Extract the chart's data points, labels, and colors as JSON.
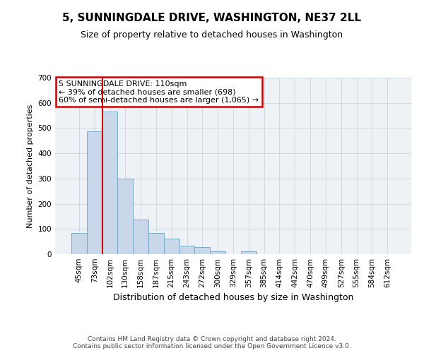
{
  "title": "5, SUNNINGDALE DRIVE, WASHINGTON, NE37 2LL",
  "subtitle": "Size of property relative to detached houses in Washington",
  "xlabel": "Distribution of detached houses by size in Washington",
  "ylabel": "Number of detached properties",
  "bin_labels": [
    "45sqm",
    "73sqm",
    "102sqm",
    "130sqm",
    "158sqm",
    "187sqm",
    "215sqm",
    "243sqm",
    "272sqm",
    "300sqm",
    "329sqm",
    "357sqm",
    "385sqm",
    "414sqm",
    "442sqm",
    "470sqm",
    "499sqm",
    "527sqm",
    "555sqm",
    "584sqm",
    "612sqm"
  ],
  "bar_heights": [
    83,
    488,
    565,
    301,
    138,
    84,
    62,
    35,
    29,
    12,
    0,
    11,
    0,
    0,
    0,
    0,
    0,
    0,
    0,
    0,
    0
  ],
  "bar_color": "#c8d8ea",
  "bar_edge_color": "#7aaac8",
  "bar_edge_width": 0.7,
  "vline_x_index": 2,
  "vline_color": "#cc0000",
  "ylim": [
    0,
    700
  ],
  "yticks": [
    0,
    100,
    200,
    300,
    400,
    500,
    600,
    700
  ],
  "grid_color": "#d0d8e0",
  "annotation_title": "5 SUNNINGDALE DRIVE: 110sqm",
  "annotation_line1": "← 39% of detached houses are smaller (698)",
  "annotation_line2": "60% of semi-detached houses are larger (1,065) →",
  "annotation_box_color": "#ffffff",
  "annotation_box_edge": "#cc0000",
  "footer_line1": "Contains HM Land Registry data © Crown copyright and database right 2024.",
  "footer_line2": "Contains public sector information licensed under the Open Government Licence v3.0.",
  "background_color": "#ffffff",
  "plot_background": "#eef2f6",
  "title_fontsize": 11,
  "subtitle_fontsize": 9,
  "ylabel_fontsize": 8,
  "xlabel_fontsize": 9,
  "tick_fontsize": 7.5,
  "annotation_fontsize": 8,
  "footer_fontsize": 6.5
}
